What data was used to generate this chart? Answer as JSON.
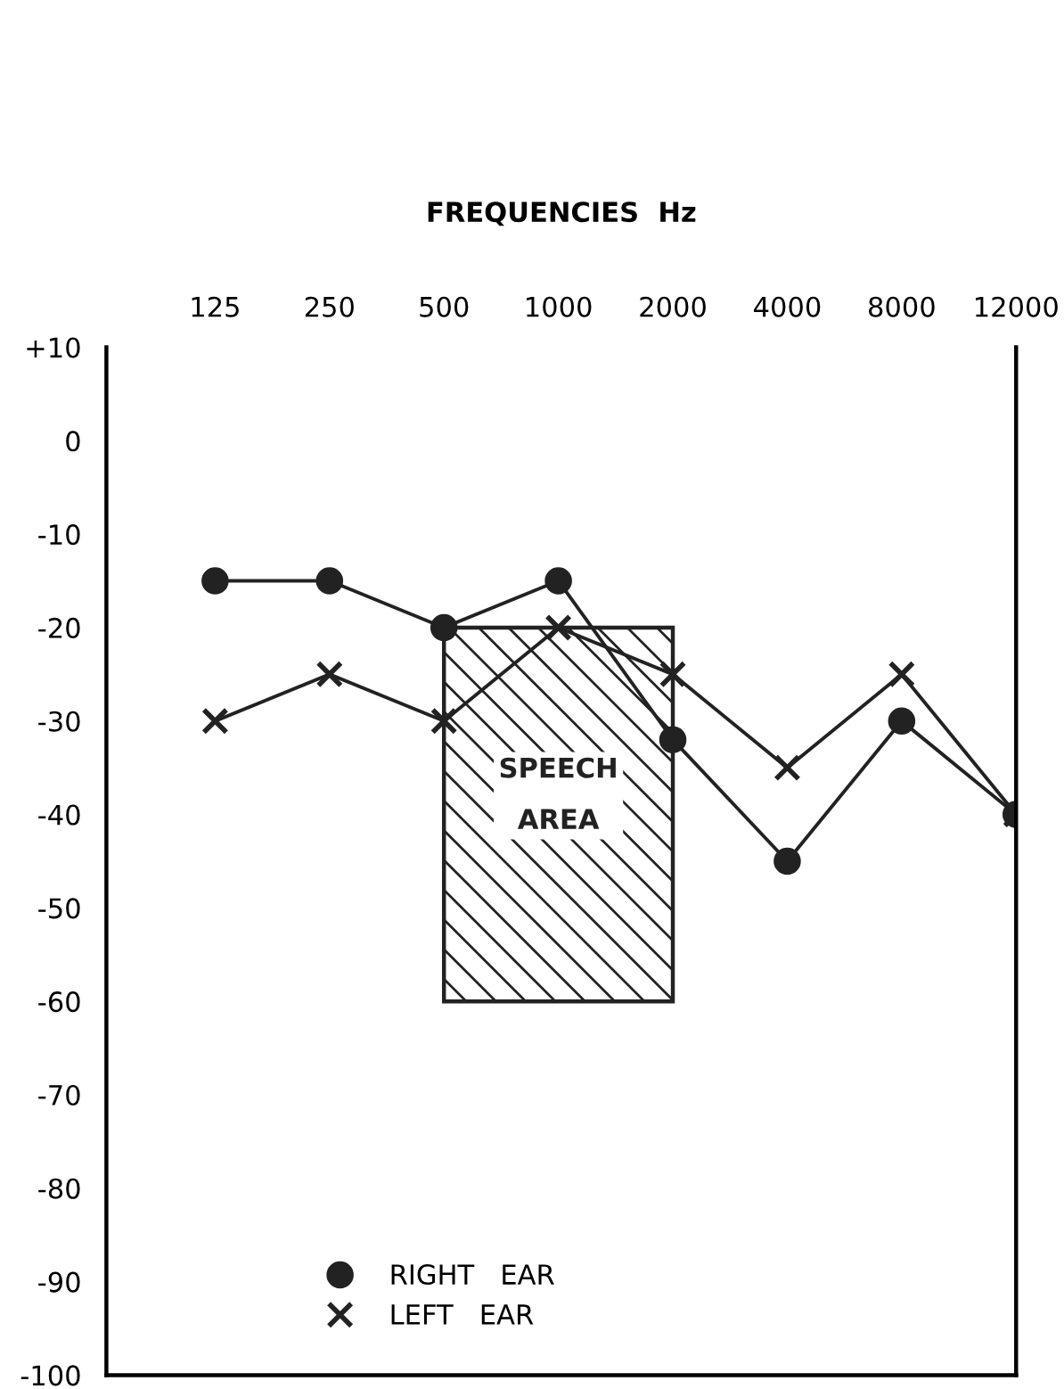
{
  "chart_data": {
    "type": "line",
    "xlabel": "FREQUENCIES  Hz",
    "categories": [
      "125",
      "250",
      "500",
      "1000",
      "2000",
      "4000",
      "8000",
      "12000"
    ],
    "series": [
      {
        "name": "RIGHT   EAR",
        "color": "#222222",
        "marker": "circle",
        "values": [
          -15,
          -15,
          -20,
          -15,
          -32,
          -45,
          -30,
          -40
        ]
      },
      {
        "name": "LEFT   EAR",
        "color": "#222222",
        "marker": "cross",
        "values": [
          -30,
          -25,
          -30,
          -20,
          -25,
          -35,
          -25,
          -40
        ]
      }
    ],
    "ylim": [
      -100,
      10
    ],
    "yticks": [
      {
        "value": 10,
        "label": "+10"
      },
      0,
      {
        "value": -10,
        "label": "-10"
      },
      {
        "value": -20,
        "label": "-20"
      },
      {
        "value": -30,
        "label": "-30"
      },
      {
        "value": -40,
        "label": "-40"
      },
      {
        "value": -50,
        "label": "-50"
      },
      {
        "value": -60,
        "label": "-60"
      },
      {
        "value": -70,
        "label": "-70"
      },
      {
        "value": -80,
        "label": "-80"
      },
      {
        "value": -90,
        "label": "-90"
      },
      {
        "value": -100,
        "label": "-100"
      }
    ],
    "bands": [
      {
        "axis": "y",
        "from": -60,
        "to": -20,
        "label": "SPEECH\nAREA",
        "color": "#222222"
      }
    ],
    "grid": false,
    "legend": "bottom left",
    "line_style": "solid"
  }
}
